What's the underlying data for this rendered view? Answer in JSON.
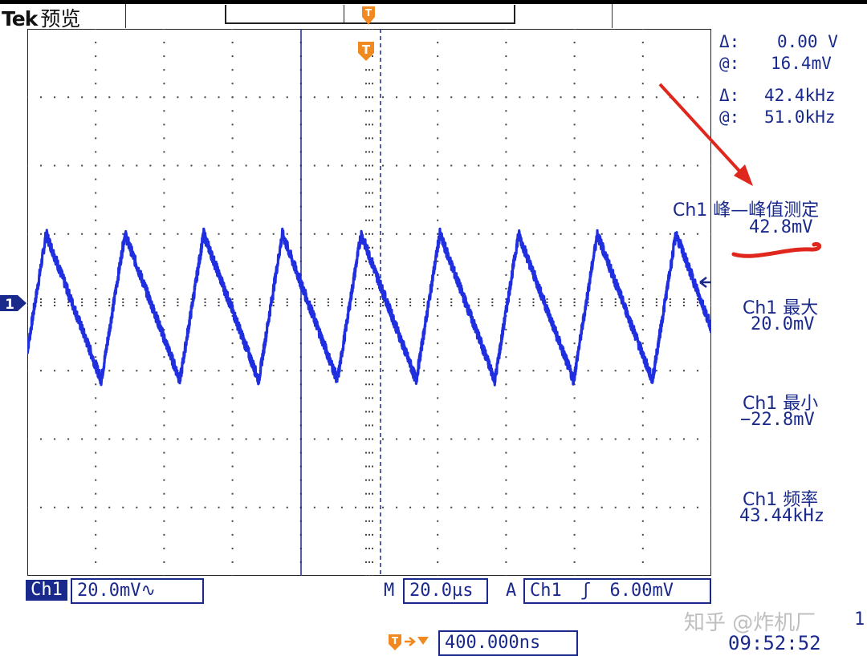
{
  "header": {
    "brand": "Tek",
    "mode": "预览"
  },
  "cursors": {
    "delta_v_label": "Δ:",
    "delta_v_value": "0.00 V",
    "at_v_label": "@:",
    "at_v_value": "16.4mV",
    "delta_f_label": "Δ:",
    "delta_f_value": "42.4kHz",
    "at_f_label": "@:",
    "at_f_value": "51.0kHz"
  },
  "measurements": [
    {
      "label": "Ch1 峰—峰值测定",
      "value": "42.8mV"
    },
    {
      "label": "Ch1 最大",
      "value": "20.0mV"
    },
    {
      "label": "Ch1 最小",
      "value": "−22.8mV"
    },
    {
      "label": "Ch1 频率",
      "value": "43.44kHz"
    }
  ],
  "status": {
    "channel_tag": "Ch1",
    "volts_per_div": "20.0mV∿",
    "timebase_prefix": "M",
    "timebase": "20.0µs",
    "trigger_prefix": "A",
    "trigger_source": "Ch1",
    "trigger_slope": "ʃ",
    "trigger_level": "6.00mV",
    "trigger_position": "400.000ns",
    "date_partial": "1",
    "time": "09:52:52"
  },
  "markers": {
    "trigger_marker": "T",
    "channel_marker": "1"
  },
  "watermark": "知乎 @炸机厂",
  "colors": {
    "trace": "#1f2fe0",
    "text": "#1a2a8c",
    "trigger_marker": "#f08a20",
    "annotation": "#e0271e"
  },
  "chart_data": {
    "type": "line",
    "series": [
      {
        "name": "Ch1",
        "shape": "triangle-sawtooth",
        "max_mV": 20.0,
        "min_mV": -22.8,
        "pk_pk_mV": 42.8,
        "frequency_kHz": 43.44
      }
    ],
    "volts_per_div_mV": 20.0,
    "time_per_div_us": 20.0,
    "grid": true
  }
}
